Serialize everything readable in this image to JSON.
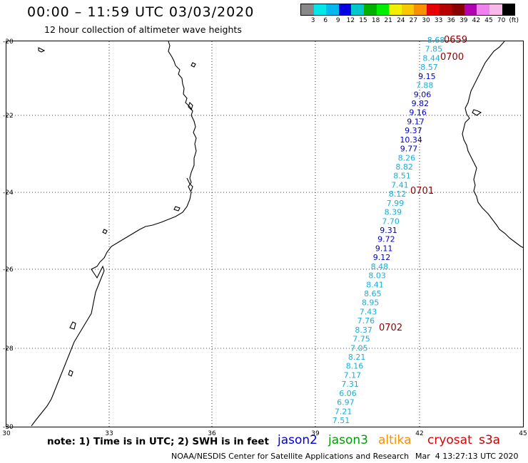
{
  "header": {
    "title": "00:00 – 11:59 UTC 03/03/2020",
    "subtitle": "12 hour collection of altimeter wave heights"
  },
  "color_scale": {
    "colors": [
      "#888888",
      "#00e8e8",
      "#00b8f0",
      "#0000e0",
      "#00c8c8",
      "#00b000",
      "#00ee00",
      "#f0f000",
      "#f8c800",
      "#f89000",
      "#e80000",
      "#b80000",
      "#880000",
      "#b000b0",
      "#f080f0",
      "#f8b8e8",
      "#000000"
    ],
    "labels": [
      "3",
      "6",
      "9",
      "12",
      "15",
      "18",
      "21",
      "24",
      "27",
      "30",
      "33",
      "36",
      "39",
      "42",
      "45",
      "70",
      "(ft)"
    ]
  },
  "map": {
    "lat_labels": [
      "-20",
      "-22",
      "-24",
      "-26",
      "-28",
      "-30"
    ],
    "lon_labels": [
      "30",
      "33",
      "36",
      "39",
      "42",
      "45"
    ],
    "track_values": [
      "8.68",
      "7.85",
      "8.44",
      "8.57",
      "9.15",
      "7.88",
      "9.06",
      "9.82",
      "9.16",
      "9.17",
      "9.37",
      "10.34",
      "9.77",
      "8.26",
      "8.82",
      "8.51",
      "7.41",
      "8.12",
      "7.99",
      "8.39",
      "7.70",
      "9.31",
      "9.72",
      "9.11",
      "9.12",
      "8.48",
      "8.03",
      "8.41",
      "8.65",
      "8.95",
      "7.43",
      "7.76",
      "8.37",
      "7.75",
      "7.05",
      "8.21",
      "8.16",
      "7.17",
      "7.31",
      "6.06",
      "6.97",
      "7.21",
      "7.51"
    ],
    "time_labels": [
      "0659",
      "0700",
      "0701",
      "0702"
    ]
  },
  "note": "note: 1) Time is in UTC; 2) SWH is in feet",
  "satellites": [
    {
      "name": "jason2",
      "color": "#0000e0"
    },
    {
      "name": "jason3",
      "color": "#00a000"
    },
    {
      "name": "altika",
      "color": "#f89000"
    },
    {
      "name": "cryosat",
      "color": "#e00000"
    },
    {
      "name": "s3a",
      "color": "#c80000"
    }
  ],
  "footer": {
    "center": "NOAA/NESDIS Center for Satellite Applications and Research",
    "date": "Mar  4 13:27:13 UTC 2020"
  }
}
